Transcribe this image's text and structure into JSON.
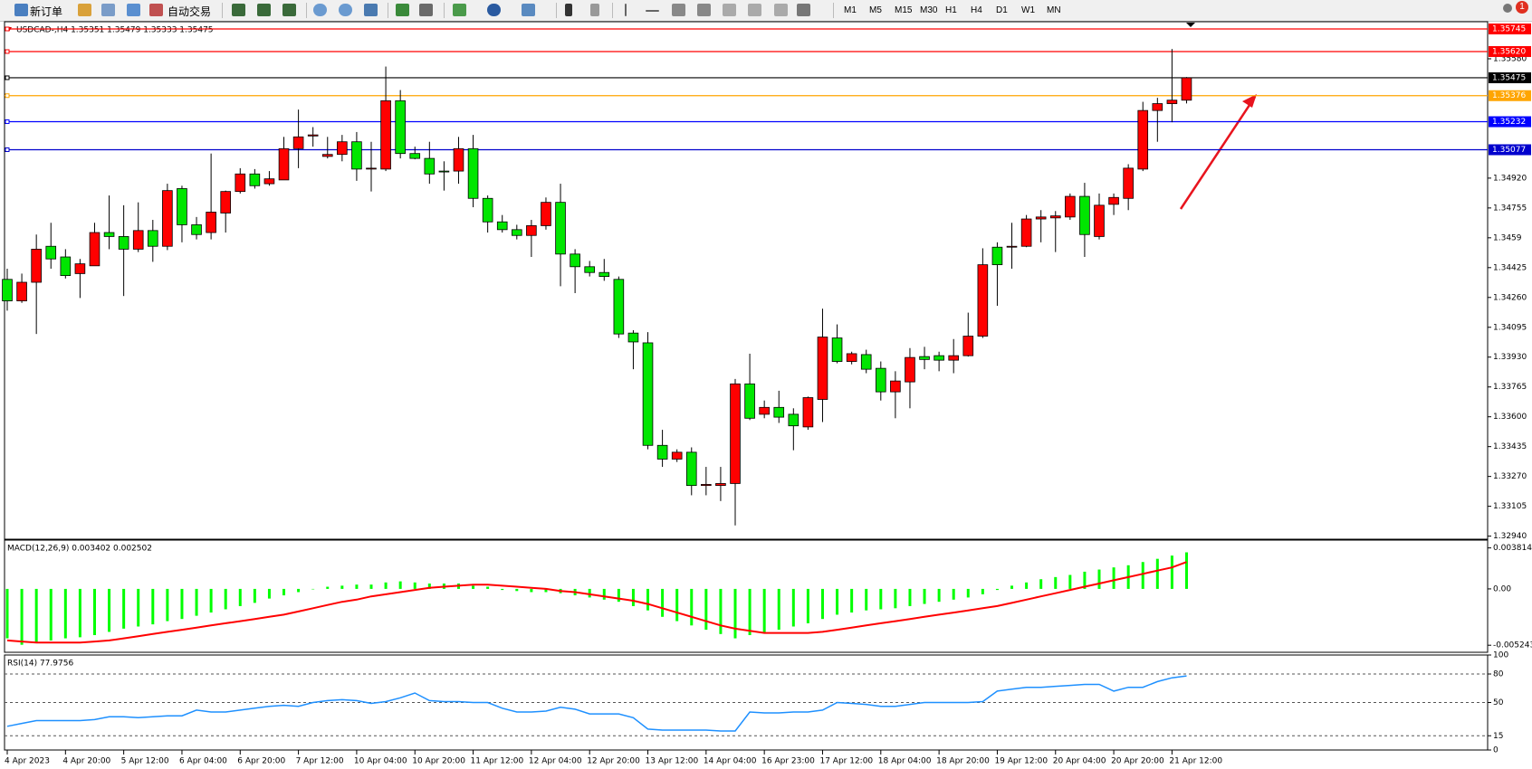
{
  "toolbar": {
    "new_order": "新订单",
    "auto_trading": "自动交易",
    "timeframes": [
      "M1",
      "M5",
      "M15",
      "M30",
      "H1",
      "H4",
      "D1",
      "W1",
      "MN"
    ],
    "badge": 1
  },
  "chart_data": [
    {
      "type": "candlestick",
      "title": "USDCAD-,H4  1.35351 1.35479 1.35333 1.35475",
      "up_color": "#ff0000",
      "down_color": "#00e600",
      "categories": [
        "4 Apr 2023",
        null,
        null,
        null,
        "4 Apr 20:00",
        null,
        null,
        null,
        "5 Apr 12:00",
        null,
        null,
        null,
        "6 Apr 04:00",
        null,
        null,
        null,
        "6 Apr 20:00",
        null,
        null,
        null,
        "7 Apr 12:00",
        null,
        null,
        null,
        "10 Apr 04:00",
        null,
        null,
        null,
        "10 Apr 20:00",
        null,
        null,
        null,
        "11 Apr 12:00",
        null,
        null,
        null,
        "12 Apr 04:00",
        null,
        null,
        null,
        "12 Apr 20:00",
        null,
        null,
        null,
        "13 Apr 12:00",
        null,
        null,
        null,
        "14 Apr 04:00",
        null,
        null,
        null,
        "16 Apr 23:00",
        null,
        null,
        null,
        "17 Apr 12:00",
        null,
        null,
        null,
        "18 Apr 04:00",
        null,
        null,
        null,
        "18 Apr 20:00",
        null,
        null,
        null,
        "19 Apr 12:00",
        null,
        null,
        null,
        "20 Apr 04:00",
        null,
        null,
        null,
        "20 Apr 20:00",
        null,
        null,
        null,
        "21 Apr 12:00",
        null
      ],
      "open": [
        1.3436,
        1.34241,
        1.34344,
        1.34543,
        1.34484,
        1.34392,
        1.34435,
        1.34619,
        1.34597,
        1.34527,
        1.3463,
        1.34543,
        1.34862,
        1.34662,
        1.34619,
        1.34727,
        1.34846,
        1.34943,
        1.34889,
        1.3491,
        1.35083,
        1.35153,
        1.3504,
        1.35051,
        1.35121,
        1.3497,
        1.3497,
        1.35348,
        1.35056,
        1.35029,
        1.34959,
        1.34959,
        1.35083,
        1.34808,
        1.34678,
        1.34635,
        1.34603,
        1.34657,
        1.34786,
        1.345,
        1.3443,
        1.34398,
        1.3436,
        1.34063,
        1.34009,
        1.33442,
        1.33366,
        1.33404,
        1.3322,
        1.3322,
        1.33231,
        1.33782,
        1.33614,
        1.33652,
        1.33614,
        1.33544,
        1.33696,
        1.34036,
        1.33906,
        1.33944,
        1.33868,
        1.33738,
        1.33793,
        1.33933,
        1.33938,
        1.33913,
        1.33938,
        1.34046,
        1.34538,
        1.34538,
        1.34543,
        1.34694,
        1.347,
        1.34705,
        1.34819,
        1.34597,
        1.34775,
        1.34808,
        1.3497,
        1.35294,
        1.35332,
        1.35351
      ],
      "high": [
        1.34419,
        1.34392,
        1.34608,
        1.34673,
        1.34527,
        1.34473,
        1.34673,
        1.34824,
        1.3477,
        1.34786,
        1.34689,
        1.34889,
        1.34878,
        1.34705,
        1.35056,
        1.34851,
        1.34975,
        1.3497,
        1.34959,
        1.35148,
        1.35299,
        1.35202,
        1.35148,
        1.35159,
        1.35175,
        1.35121,
        1.35537,
        1.35407,
        1.35094,
        1.35121,
        1.35013,
        1.35148,
        1.35159,
        1.34824,
        1.34716,
        1.34662,
        1.34689,
        1.34813,
        1.34889,
        1.34527,
        1.34462,
        1.34473,
        1.34376,
        1.34079,
        1.34068,
        1.33528,
        1.3342,
        1.33431,
        1.33323,
        1.33323,
        1.33809,
        1.33949,
        1.3369,
        1.33744,
        1.33647,
        1.33712,
        1.34198,
        1.34111,
        1.3396,
        1.33971,
        1.33906,
        1.33852,
        1.3398,
        1.33987,
        1.3396,
        1.3403,
        1.34176,
        1.34532,
        1.34565,
        1.34673,
        1.34716,
        1.34743,
        1.34738,
        1.34835,
        1.34894,
        1.34835,
        1.34835,
        1.34997,
        1.35342,
        1.35364,
        1.35634,
        1.35479
      ],
      "low": [
        1.34187,
        1.3423,
        1.34058,
        1.34419,
        1.34365,
        1.34257,
        1.34435,
        1.34527,
        1.34268,
        1.34511,
        1.34457,
        1.34522,
        1.34565,
        1.34581,
        1.34581,
        1.34619,
        1.34835,
        1.34862,
        1.34878,
        1.3491,
        1.34975,
        1.35094,
        1.35029,
        1.35013,
        1.34905,
        1.34846,
        1.34959,
        1.35029,
        1.35024,
        1.34889,
        1.34851,
        1.34889,
        1.34759,
        1.34619,
        1.34619,
        1.34581,
        1.34484,
        1.34635,
        1.34322,
        1.34284,
        1.34376,
        1.34352,
        1.34036,
        1.33863,
        1.3342,
        1.33323,
        1.3335,
        1.33166,
        1.33166,
        1.33134,
        1.32999,
        1.33582,
        1.33592,
        1.33566,
        1.33415,
        1.33528,
        1.33571,
        1.33896,
        1.3389,
        1.33841,
        1.3369,
        1.33592,
        1.33647,
        1.33863,
        1.33852,
        1.33841,
        1.33933,
        1.34036,
        1.34214,
        1.34419,
        1.34538,
        1.34565,
        1.34511,
        1.34689,
        1.34484,
        1.34581,
        1.34716,
        1.34743,
        1.34959,
        1.35121,
        1.35229,
        1.35333
      ],
      "close": [
        1.34241,
        1.34344,
        1.34527,
        1.34473,
        1.34381,
        1.34446,
        1.34619,
        1.34597,
        1.34527,
        1.3463,
        1.34543,
        1.34851,
        1.34662,
        1.34608,
        1.34732,
        1.34846,
        1.34943,
        1.34878,
        1.34916,
        1.35083,
        1.35148,
        1.35159,
        1.35051,
        1.35121,
        1.3497,
        1.34975,
        1.35348,
        1.35056,
        1.35029,
        1.34943,
        1.34954,
        1.35083,
        1.34808,
        1.34678,
        1.34635,
        1.34603,
        1.34657,
        1.34786,
        1.345,
        1.3443,
        1.34398,
        1.34376,
        1.34058,
        1.34014,
        1.33442,
        1.33366,
        1.33404,
        1.3322,
        1.33226,
        1.33231,
        1.33782,
        1.33592,
        1.33652,
        1.33598,
        1.3355,
        1.33706,
        1.34041,
        1.33906,
        1.33949,
        1.33863,
        1.33738,
        1.33798,
        1.33928,
        1.33917,
        1.33913,
        1.33938,
        1.34046,
        1.34441,
        1.34441,
        1.34543,
        1.34694,
        1.34705,
        1.34711,
        1.34819,
        1.34608,
        1.3477,
        1.34813,
        1.34975,
        1.35294,
        1.35332,
        1.35351,
        1.35475
      ],
      "ylim": [
        1.32923,
        1.35785
      ],
      "yticks": [
        {
          "value": 1.3558,
          "label": "1.35580"
        },
        {
          "value": 1.3492,
          "label": "1.34920"
        },
        1.34755,
        1.3459,
        1.34425,
        {
          "value": 1.3426,
          "label": "1.34260"
        },
        1.34095,
        {
          "value": 1.3393,
          "label": "1.33930"
        },
        1.33765,
        {
          "value": 1.336,
          "label": "1.33600"
        },
        1.33435,
        {
          "value": 1.3327,
          "label": "1.33270"
        },
        1.33105,
        {
          "value": 1.3294,
          "label": "1.32940"
        }
      ],
      "hlines": [
        {
          "value": 1.35745,
          "color": "#ff0000"
        },
        {
          "value": 1.3562,
          "label": "1.35620",
          "color": "#ff0000"
        },
        {
          "value": 1.35475,
          "color": "#000000"
        },
        {
          "value": 1.35376,
          "color": "#ffa500"
        },
        {
          "value": 1.35232,
          "color": "#0000ff"
        },
        {
          "value": 1.35077,
          "color": "#0000cd"
        }
      ]
    },
    {
      "type": "macd",
      "title": "MACD(12,26,9) 0.003402 0.002502",
      "color": "#00ff00",
      "signal_color": "#ff0000",
      "values": [
        -0.0046,
        -0.0052,
        -0.005,
        -0.0048,
        -0.0046,
        -0.0045,
        -0.0043,
        -0.004,
        -0.0037,
        -0.0035,
        -0.0033,
        -0.003,
        -0.0028,
        -0.0025,
        -0.0022,
        -0.0019,
        -0.0016,
        -0.0013,
        -0.0009,
        -0.0006,
        -0.0003,
        0.0,
        0.0002,
        0.0003,
        0.0004,
        0.0004,
        0.0006,
        0.0007,
        0.0006,
        0.0005,
        0.0005,
        0.0005,
        0.0003,
        0.0002,
        -0.0001,
        -0.0002,
        -0.0003,
        -0.0003,
        -0.0004,
        -0.0006,
        -0.0008,
        -0.001,
        -0.0012,
        -0.0016,
        -0.002,
        -0.0026,
        -0.003,
        -0.0034,
        -0.0038,
        -0.0042,
        -0.0046,
        -0.0043,
        -0.0041,
        -0.0038,
        -0.0035,
        -0.0032,
        -0.0028,
        -0.0024,
        -0.0022,
        -0.002,
        -0.0019,
        -0.0018,
        -0.0016,
        -0.0014,
        -0.0012,
        -0.001,
        -0.0008,
        -0.0005,
        -0.0001,
        0.0003,
        0.0006,
        0.0009,
        0.0011,
        0.0013,
        0.0016,
        0.0018,
        0.002,
        0.0022,
        0.0025,
        0.0028,
        0.0031,
        0.003402
      ],
      "signal": [
        -0.0048,
        -0.0049,
        -0.005,
        -0.005,
        -0.005,
        -0.005,
        -0.0049,
        -0.0048,
        -0.0046,
        -0.0044,
        -0.0042,
        -0.004,
        -0.0038,
        -0.0036,
        -0.0034,
        -0.0032,
        -0.003,
        -0.0028,
        -0.0026,
        -0.0024,
        -0.0021,
        -0.0018,
        -0.0015,
        -0.0012,
        -0.001,
        -0.0007,
        -0.0005,
        -0.0003,
        -0.0001,
        0.0001,
        0.0002,
        0.0003,
        0.0004,
        0.0004,
        0.0003,
        0.0002,
        0.0001,
        0.0,
        -0.0002,
        -0.0003,
        -0.0005,
        -0.0007,
        -0.0009,
        -0.0011,
        -0.0014,
        -0.0018,
        -0.0022,
        -0.0026,
        -0.003,
        -0.0034,
        -0.0037,
        -0.0039,
        -0.0041,
        -0.0041,
        -0.0041,
        -0.0041,
        -0.004,
        -0.0038,
        -0.0036,
        -0.0034,
        -0.0032,
        -0.003,
        -0.0028,
        -0.0026,
        -0.0024,
        -0.0022,
        -0.002,
        -0.0018,
        -0.0016,
        -0.0013,
        -0.001,
        -0.0007,
        -0.0004,
        -0.0001,
        0.0002,
        0.0005,
        0.0008,
        0.0011,
        0.0014,
        0.0017,
        0.002,
        0.002502
      ],
      "ylim": [
        -0.0059,
        0.00454
      ],
      "yticks": [
        0.003814,
        {
          "value": 0,
          "label": "0.00"
        },
        -0.005243
      ]
    },
    {
      "type": "line",
      "title": "RSI(14) 77.9756",
      "color": "#1e90ff",
      "values": [
        25,
        28,
        31,
        31,
        31,
        31,
        32,
        35,
        35,
        34,
        35,
        36,
        36,
        42,
        40,
        40,
        42,
        44,
        46,
        47,
        46,
        50,
        52,
        53,
        52,
        49,
        51,
        55,
        60,
        52,
        51,
        51,
        50,
        50,
        44,
        40,
        40,
        41,
        45,
        43,
        38,
        38,
        38,
        34,
        22,
        21,
        21,
        21,
        21,
        20,
        20,
        40,
        39,
        39,
        40,
        40,
        42,
        50,
        49,
        48,
        46,
        46,
        48,
        50,
        50,
        50,
        50,
        51,
        62,
        64,
        66,
        66,
        67,
        68,
        69,
        69,
        62,
        66,
        66,
        72,
        76,
        77.9756
      ],
      "ylim": [
        0,
        100
      ],
      "yticks": [
        100,
        80,
        50,
        15,
        0
      ]
    }
  ]
}
